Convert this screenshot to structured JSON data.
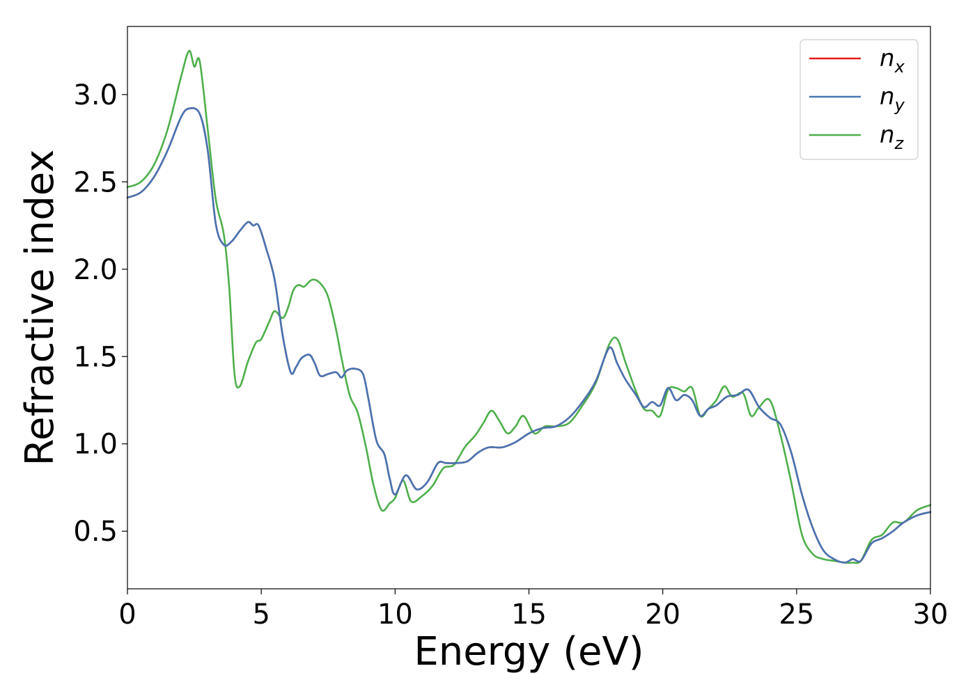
{
  "chart_data": {
    "type": "line",
    "title": "",
    "xlabel": "Energy (eV)",
    "ylabel": "Refractive index",
    "xlim": [
      0,
      30
    ],
    "ylim": [
      0.17,
      3.39
    ],
    "xticks": [
      0,
      5,
      10,
      15,
      20,
      25,
      30
    ],
    "xtick_labels": [
      "0",
      "5",
      "10",
      "15",
      "20",
      "25",
      "30"
    ],
    "yticks": [
      0.5,
      1.0,
      1.5,
      2.0,
      2.5,
      3.0
    ],
    "ytick_labels": [
      "0.5",
      "1.0",
      "1.5",
      "2.0",
      "2.5",
      "3.0"
    ],
    "grid": false,
    "legend_position": "top-right",
    "series": [
      {
        "name": "n",
        "subscript": "x",
        "color": "#e41a1c",
        "x": [
          0,
          0.5,
          1.0,
          1.5,
          2.0,
          2.3,
          2.7,
          3.0,
          3.3,
          3.6,
          3.9,
          4.2,
          4.5,
          4.7,
          4.9,
          5.2,
          5.5,
          5.8,
          6.1,
          6.3,
          6.5,
          6.8,
          7.0,
          7.2,
          7.5,
          7.8,
          8.0,
          8.2,
          8.5,
          8.8,
          9.0,
          9.3,
          9.6,
          9.8,
          10.0,
          10.4,
          10.8,
          11.2,
          11.6,
          11.9,
          12.3,
          12.7,
          13.1,
          13.5,
          14.0,
          14.5,
          15.0,
          15.5,
          16.0,
          16.5,
          17.0,
          17.5,
          18.0,
          18.3,
          18.6,
          19.0,
          19.3,
          19.6,
          19.9,
          20.2,
          20.5,
          20.8,
          21.1,
          21.4,
          21.7,
          22.0,
          22.4,
          22.8,
          23.2,
          23.6,
          24.0,
          24.4,
          24.8,
          25.2,
          25.6,
          26.0,
          26.4,
          26.8,
          27.1,
          27.4,
          27.8,
          28.2,
          28.6,
          29.0,
          29.5,
          30.0
        ],
        "y": [
          2.41,
          2.44,
          2.53,
          2.68,
          2.87,
          2.92,
          2.89,
          2.68,
          2.26,
          2.14,
          2.16,
          2.22,
          2.27,
          2.25,
          2.25,
          2.11,
          1.94,
          1.62,
          1.41,
          1.44,
          1.49,
          1.51,
          1.46,
          1.39,
          1.4,
          1.41,
          1.38,
          1.42,
          1.43,
          1.4,
          1.26,
          1.02,
          0.94,
          0.8,
          0.71,
          0.82,
          0.74,
          0.78,
          0.89,
          0.89,
          0.89,
          0.9,
          0.95,
          0.98,
          0.98,
          1.01,
          1.06,
          1.09,
          1.1,
          1.15,
          1.24,
          1.36,
          1.55,
          1.46,
          1.37,
          1.28,
          1.21,
          1.24,
          1.22,
          1.32,
          1.25,
          1.28,
          1.25,
          1.16,
          1.2,
          1.22,
          1.27,
          1.28,
          1.31,
          1.21,
          1.15,
          1.11,
          0.95,
          0.71,
          0.52,
          0.39,
          0.34,
          0.32,
          0.34,
          0.33,
          0.43,
          0.46,
          0.5,
          0.55,
          0.59,
          0.61
        ]
      },
      {
        "name": "n",
        "subscript": "y",
        "color": "#4575b4",
        "x": [
          0,
          0.5,
          1.0,
          1.5,
          2.0,
          2.3,
          2.7,
          3.0,
          3.3,
          3.6,
          3.9,
          4.2,
          4.5,
          4.7,
          4.9,
          5.2,
          5.5,
          5.8,
          6.1,
          6.3,
          6.5,
          6.8,
          7.0,
          7.2,
          7.5,
          7.8,
          8.0,
          8.2,
          8.5,
          8.8,
          9.0,
          9.3,
          9.6,
          9.8,
          10.0,
          10.4,
          10.8,
          11.2,
          11.6,
          11.9,
          12.3,
          12.7,
          13.1,
          13.5,
          14.0,
          14.5,
          15.0,
          15.5,
          16.0,
          16.5,
          17.0,
          17.5,
          18.0,
          18.3,
          18.6,
          19.0,
          19.3,
          19.6,
          19.9,
          20.2,
          20.5,
          20.8,
          21.1,
          21.4,
          21.7,
          22.0,
          22.4,
          22.8,
          23.2,
          23.6,
          24.0,
          24.4,
          24.8,
          25.2,
          25.6,
          26.0,
          26.4,
          26.8,
          27.1,
          27.4,
          27.8,
          28.2,
          28.6,
          29.0,
          29.5,
          30.0
        ],
        "y": [
          2.41,
          2.44,
          2.53,
          2.68,
          2.87,
          2.92,
          2.89,
          2.68,
          2.26,
          2.14,
          2.16,
          2.22,
          2.27,
          2.25,
          2.25,
          2.11,
          1.94,
          1.62,
          1.41,
          1.44,
          1.49,
          1.51,
          1.46,
          1.39,
          1.4,
          1.41,
          1.38,
          1.42,
          1.43,
          1.4,
          1.26,
          1.02,
          0.94,
          0.8,
          0.71,
          0.82,
          0.74,
          0.78,
          0.89,
          0.89,
          0.89,
          0.9,
          0.95,
          0.98,
          0.98,
          1.01,
          1.06,
          1.09,
          1.1,
          1.15,
          1.24,
          1.36,
          1.55,
          1.46,
          1.37,
          1.28,
          1.21,
          1.24,
          1.22,
          1.32,
          1.25,
          1.28,
          1.25,
          1.16,
          1.2,
          1.22,
          1.27,
          1.28,
          1.31,
          1.21,
          1.15,
          1.11,
          0.95,
          0.71,
          0.52,
          0.39,
          0.34,
          0.32,
          0.34,
          0.33,
          0.43,
          0.46,
          0.5,
          0.55,
          0.59,
          0.61
        ]
      },
      {
        "name": "n",
        "subscript": "z",
        "color": "#4daf4a",
        "x": [
          0,
          0.5,
          1.0,
          1.5,
          2.0,
          2.3,
          2.5,
          2.7,
          3.0,
          3.3,
          3.6,
          3.8,
          4.0,
          4.2,
          4.5,
          4.8,
          5.0,
          5.3,
          5.5,
          5.8,
          6.0,
          6.2,
          6.4,
          6.6,
          6.9,
          7.2,
          7.5,
          7.8,
          8.0,
          8.3,
          8.6,
          8.9,
          9.2,
          9.5,
          9.8,
          10.0,
          10.3,
          10.6,
          11.0,
          11.4,
          11.8,
          12.2,
          12.6,
          13.0,
          13.3,
          13.6,
          13.9,
          14.2,
          14.5,
          14.8,
          15.2,
          15.6,
          16.0,
          16.5,
          17.0,
          17.5,
          18.0,
          18.3,
          18.6,
          19.0,
          19.3,
          19.6,
          19.9,
          20.2,
          20.5,
          20.8,
          21.1,
          21.4,
          21.7,
          22.0,
          22.3,
          22.6,
          23.0,
          23.3,
          23.6,
          24.0,
          24.4,
          24.8,
          25.2,
          25.6,
          26.0,
          26.4,
          26.8,
          27.1,
          27.4,
          27.8,
          28.2,
          28.6,
          29.0,
          29.5,
          30.0
        ],
        "y": [
          2.47,
          2.5,
          2.6,
          2.8,
          3.1,
          3.25,
          3.16,
          3.19,
          2.8,
          2.4,
          2.2,
          1.9,
          1.4,
          1.33,
          1.47,
          1.58,
          1.6,
          1.7,
          1.76,
          1.72,
          1.78,
          1.88,
          1.91,
          1.9,
          1.94,
          1.92,
          1.84,
          1.65,
          1.49,
          1.28,
          1.18,
          0.99,
          0.76,
          0.62,
          0.66,
          0.69,
          0.79,
          0.67,
          0.7,
          0.76,
          0.86,
          0.88,
          0.98,
          1.05,
          1.12,
          1.19,
          1.13,
          1.06,
          1.1,
          1.16,
          1.06,
          1.1,
          1.1,
          1.12,
          1.22,
          1.35,
          1.57,
          1.6,
          1.47,
          1.3,
          1.2,
          1.19,
          1.16,
          1.31,
          1.32,
          1.3,
          1.32,
          1.16,
          1.2,
          1.25,
          1.33,
          1.27,
          1.29,
          1.16,
          1.21,
          1.25,
          1.05,
          0.78,
          0.48,
          0.37,
          0.34,
          0.33,
          0.32,
          0.32,
          0.33,
          0.45,
          0.48,
          0.55,
          0.55,
          0.62,
          0.65
        ]
      }
    ]
  }
}
